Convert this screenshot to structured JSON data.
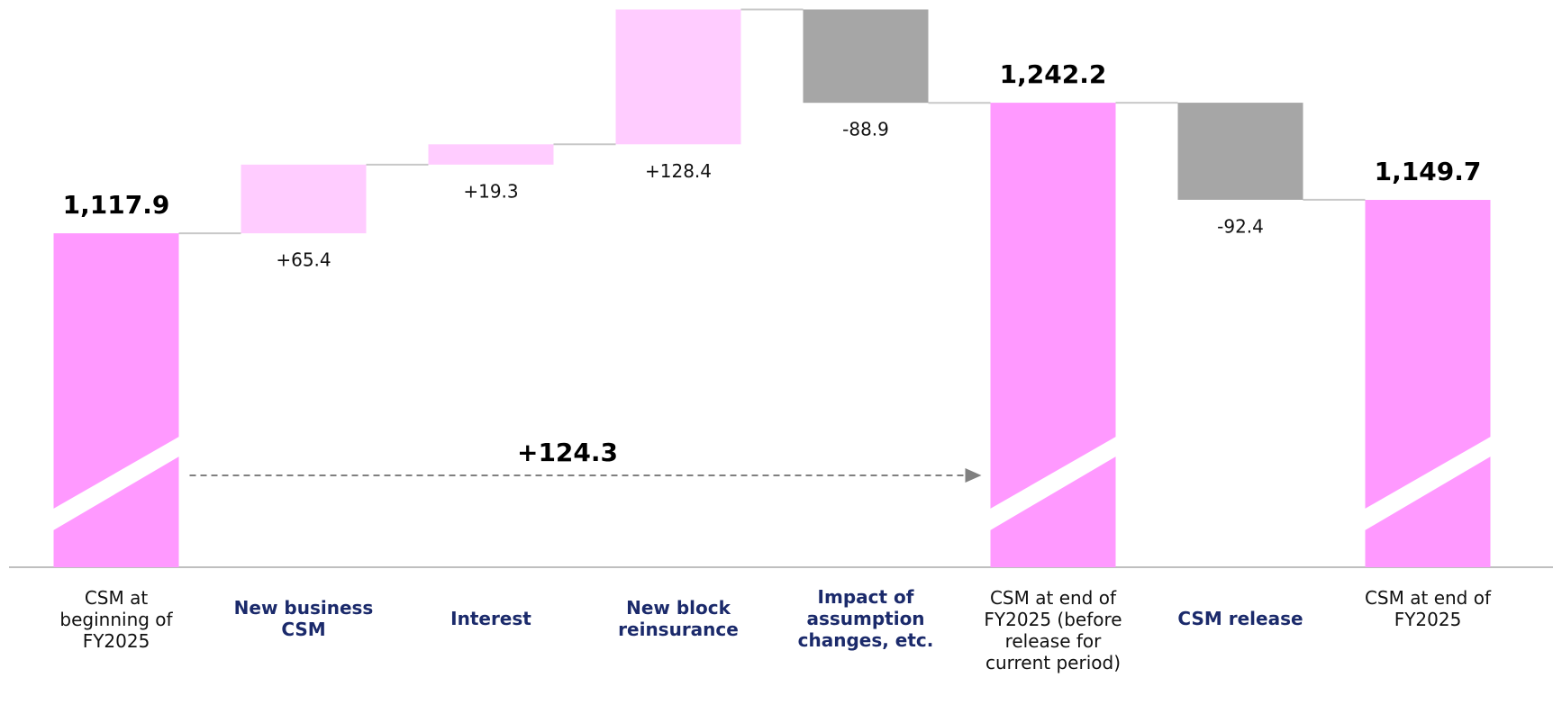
{
  "chart_data": {
    "type": "waterfall",
    "categories": [
      "CSM at beginning of FY2025",
      "New business CSM",
      "Interest",
      "New block reinsurance",
      "Impact of assumption changes, etc.",
      "CSM at end of FY2025 (before release for current period)",
      "CSM release",
      "CSM at end of FY2025"
    ],
    "values": [
      1117.9,
      65.4,
      19.3,
      128.4,
      -88.9,
      1242.2,
      -92.4,
      1149.7
    ],
    "value_labels": [
      "1,117.9",
      "+65.4",
      "+19.3",
      "+128.4",
      "-88.9",
      "1,242.2",
      "-92.4",
      "1,149.7"
    ],
    "measure": [
      "total",
      "relative",
      "relative",
      "relative",
      "relative",
      "total",
      "relative",
      "total"
    ],
    "colors": {
      "total": "#ff99ff",
      "increase": "#ffccff",
      "decrease": "#a6a6a6"
    },
    "ylim": [
      800,
      1340
    ],
    "axis_break": true,
    "annotation": "+124.3"
  }
}
